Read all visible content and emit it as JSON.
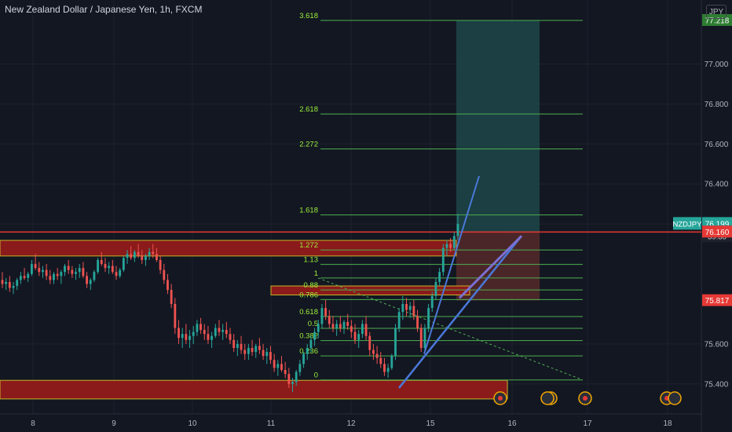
{
  "header": {
    "title": "New Zealand Dollar / Japanese Yen, 1h, FXCM",
    "currency_button": "JPY"
  },
  "colors": {
    "background": "#131722",
    "grid": "#1e222d",
    "up": "#26a69a",
    "down": "#ef5350",
    "fib": "#4caf50",
    "fib_text": "#9bf03a",
    "zone": "#8b1a1a",
    "target_zone": "#1f4d4d",
    "stop_zone": "#5a2a2a",
    "trend_blue": "#4a78d8",
    "trend_purple": "#7b6fd0"
  },
  "icons": {
    "event_flag": "event-flag-icon"
  },
  "chart_data": {
    "type": "candlestick",
    "title": "New Zealand Dollar / Japanese Yen, 1h, FXCM",
    "x_ticks": [
      "8",
      "9",
      "10",
      "11",
      "12",
      "15",
      "16",
      "17",
      "18"
    ],
    "y_ticks": [
      77.0,
      76.8,
      76.6,
      76.4,
      76.2,
      75.6,
      75.4
    ],
    "ylim": [
      75.25,
      77.32
    ],
    "grid": true,
    "price_labels": [
      {
        "value": 77.218,
        "text": "77.218",
        "style": "fib"
      },
      {
        "value": 76.199,
        "text": "76.199",
        "symbol": "NZDJPY",
        "countdown": "39:38",
        "style": "last"
      },
      {
        "value": 76.161,
        "text": "76.161",
        "style": "gray"
      },
      {
        "value": 76.16,
        "text": "76.160",
        "style": "red"
      },
      {
        "value": 75.817,
        "text": "75.817",
        "style": "red"
      }
    ],
    "fib_levels": [
      {
        "label": "0",
        "value": 75.42
      },
      {
        "label": "0.236",
        "value": 75.54
      },
      {
        "label": "0.382",
        "value": 75.617
      },
      {
        "label": "0.5",
        "value": 75.678
      },
      {
        "label": "0.618",
        "value": 75.737
      },
      {
        "label": "0.786",
        "value": 75.822
      },
      {
        "label": "0.88",
        "value": 75.87
      },
      {
        "label": "1",
        "value": 75.93
      },
      {
        "label": "1.13",
        "value": 75.998
      },
      {
        "label": "1.272",
        "value": 76.07
      },
      {
        "label": "1.618",
        "value": 76.245
      },
      {
        "label": "2.272",
        "value": 76.575
      },
      {
        "label": "2.618",
        "value": 76.75
      },
      {
        "label": "3.618",
        "value": 77.218
      }
    ],
    "resistance_line": 76.16,
    "zones": [
      {
        "name": "upper-zone",
        "top": 76.118,
        "bottom": 76.04
      },
      {
        "name": "middle-zone",
        "top": 75.89,
        "bottom": 75.845
      },
      {
        "name": "lower-zone",
        "top": 75.418,
        "bottom": 75.325
      }
    ],
    "position": {
      "entry": 76.16,
      "target": 77.218,
      "stop": 75.817
    },
    "candles": [
      {
        "o": 75.92,
        "h": 75.96,
        "l": 75.88,
        "c": 75.9
      },
      {
        "o": 75.9,
        "h": 75.93,
        "l": 75.87,
        "c": 75.91
      },
      {
        "o": 75.91,
        "h": 75.94,
        "l": 75.86,
        "c": 75.88
      },
      {
        "o": 75.88,
        "h": 75.91,
        "l": 75.85,
        "c": 75.89
      },
      {
        "o": 75.89,
        "h": 75.93,
        "l": 75.87,
        "c": 75.92
      },
      {
        "o": 75.92,
        "h": 75.96,
        "l": 75.9,
        "c": 75.94
      },
      {
        "o": 75.94,
        "h": 75.98,
        "l": 75.92,
        "c": 75.93
      },
      {
        "o": 75.93,
        "h": 75.96,
        "l": 75.91,
        "c": 75.95
      },
      {
        "o": 75.95,
        "h": 76.02,
        "l": 75.94,
        "c": 76.0
      },
      {
        "o": 76.0,
        "h": 76.05,
        "l": 75.97,
        "c": 75.98
      },
      {
        "o": 75.98,
        "h": 76.01,
        "l": 75.94,
        "c": 75.96
      },
      {
        "o": 75.96,
        "h": 75.99,
        "l": 75.93,
        "c": 75.97
      },
      {
        "o": 75.97,
        "h": 76.0,
        "l": 75.92,
        "c": 75.94
      },
      {
        "o": 75.94,
        "h": 75.97,
        "l": 75.9,
        "c": 75.92
      },
      {
        "o": 75.92,
        "h": 75.96,
        "l": 75.9,
        "c": 75.95
      },
      {
        "o": 75.95,
        "h": 75.98,
        "l": 75.92,
        "c": 75.94
      },
      {
        "o": 75.94,
        "h": 75.97,
        "l": 75.9,
        "c": 75.96
      },
      {
        "o": 75.96,
        "h": 76.0,
        "l": 75.94,
        "c": 75.99
      },
      {
        "o": 75.99,
        "h": 76.02,
        "l": 75.95,
        "c": 75.97
      },
      {
        "o": 75.97,
        "h": 75.99,
        "l": 75.93,
        "c": 75.95
      },
      {
        "o": 75.95,
        "h": 75.98,
        "l": 75.92,
        "c": 75.96
      },
      {
        "o": 75.96,
        "h": 76.0,
        "l": 75.93,
        "c": 75.98
      },
      {
        "o": 75.98,
        "h": 76.01,
        "l": 75.93,
        "c": 75.94
      },
      {
        "o": 75.94,
        "h": 75.96,
        "l": 75.88,
        "c": 75.9
      },
      {
        "o": 75.9,
        "h": 75.93,
        "l": 75.87,
        "c": 75.92
      },
      {
        "o": 75.92,
        "h": 75.97,
        "l": 75.91,
        "c": 75.96
      },
      {
        "o": 75.96,
        "h": 76.03,
        "l": 75.95,
        "c": 76.02
      },
      {
        "o": 76.02,
        "h": 76.06,
        "l": 75.99,
        "c": 76.0
      },
      {
        "o": 76.0,
        "h": 76.03,
        "l": 75.96,
        "c": 75.98
      },
      {
        "o": 75.98,
        "h": 76.01,
        "l": 75.95,
        "c": 75.99
      },
      {
        "o": 75.99,
        "h": 76.02,
        "l": 75.95,
        "c": 75.96
      },
      {
        "o": 75.96,
        "h": 75.99,
        "l": 75.92,
        "c": 75.94
      },
      {
        "o": 75.94,
        "h": 75.98,
        "l": 75.93,
        "c": 75.97
      },
      {
        "o": 75.97,
        "h": 76.04,
        "l": 75.96,
        "c": 76.03
      },
      {
        "o": 76.03,
        "h": 76.07,
        "l": 76.0,
        "c": 76.05
      },
      {
        "o": 76.05,
        "h": 76.09,
        "l": 76.02,
        "c": 76.03
      },
      {
        "o": 76.03,
        "h": 76.07,
        "l": 76.01,
        "c": 76.06
      },
      {
        "o": 76.06,
        "h": 76.1,
        "l": 76.03,
        "c": 76.04
      },
      {
        "o": 76.04,
        "h": 76.07,
        "l": 76.0,
        "c": 76.02
      },
      {
        "o": 76.02,
        "h": 76.05,
        "l": 75.99,
        "c": 76.04
      },
      {
        "o": 76.04,
        "h": 76.08,
        "l": 76.02,
        "c": 76.06
      },
      {
        "o": 76.06,
        "h": 76.1,
        "l": 76.03,
        "c": 76.05
      },
      {
        "o": 76.05,
        "h": 76.08,
        "l": 76.01,
        "c": 76.02
      },
      {
        "o": 76.02,
        "h": 76.04,
        "l": 75.95,
        "c": 75.97
      },
      {
        "o": 75.97,
        "h": 76.0,
        "l": 75.9,
        "c": 75.92
      },
      {
        "o": 75.92,
        "h": 75.95,
        "l": 75.85,
        "c": 75.87
      },
      {
        "o": 75.87,
        "h": 75.9,
        "l": 75.78,
        "c": 75.8
      },
      {
        "o": 75.8,
        "h": 75.83,
        "l": 75.65,
        "c": 75.68
      },
      {
        "o": 75.68,
        "h": 75.72,
        "l": 75.6,
        "c": 75.63
      },
      {
        "o": 75.63,
        "h": 75.68,
        "l": 75.58,
        "c": 75.65
      },
      {
        "o": 75.65,
        "h": 75.7,
        "l": 75.6,
        "c": 75.62
      },
      {
        "o": 75.62,
        "h": 75.67,
        "l": 75.58,
        "c": 75.64
      },
      {
        "o": 75.64,
        "h": 75.69,
        "l": 75.6,
        "c": 75.66
      },
      {
        "o": 75.66,
        "h": 75.72,
        "l": 75.64,
        "c": 75.7
      },
      {
        "o": 75.7,
        "h": 75.73,
        "l": 75.65,
        "c": 75.67
      },
      {
        "o": 75.67,
        "h": 75.7,
        "l": 75.62,
        "c": 75.65
      },
      {
        "o": 75.65,
        "h": 75.69,
        "l": 75.6,
        "c": 75.62
      },
      {
        "o": 75.62,
        "h": 75.66,
        "l": 75.58,
        "c": 75.64
      },
      {
        "o": 75.64,
        "h": 75.7,
        "l": 75.63,
        "c": 75.68
      },
      {
        "o": 75.68,
        "h": 75.72,
        "l": 75.64,
        "c": 75.66
      },
      {
        "o": 75.66,
        "h": 75.7,
        "l": 75.62,
        "c": 75.67
      },
      {
        "o": 75.67,
        "h": 75.71,
        "l": 75.63,
        "c": 75.65
      },
      {
        "o": 75.65,
        "h": 75.68,
        "l": 75.6,
        "c": 75.62
      },
      {
        "o": 75.62,
        "h": 75.65,
        "l": 75.56,
        "c": 75.58
      },
      {
        "o": 75.58,
        "h": 75.62,
        "l": 75.54,
        "c": 75.6
      },
      {
        "o": 75.6,
        "h": 75.64,
        "l": 75.55,
        "c": 75.57
      },
      {
        "o": 75.57,
        "h": 75.6,
        "l": 75.52,
        "c": 75.55
      },
      {
        "o": 75.55,
        "h": 75.6,
        "l": 75.52,
        "c": 75.58
      },
      {
        "o": 75.58,
        "h": 75.62,
        "l": 75.54,
        "c": 75.56
      },
      {
        "o": 75.56,
        "h": 75.6,
        "l": 75.53,
        "c": 75.59
      },
      {
        "o": 75.59,
        "h": 75.63,
        "l": 75.55,
        "c": 75.57
      },
      {
        "o": 75.57,
        "h": 75.6,
        "l": 75.52,
        "c": 75.54
      },
      {
        "o": 75.54,
        "h": 75.58,
        "l": 75.5,
        "c": 75.56
      },
      {
        "o": 75.56,
        "h": 75.59,
        "l": 75.5,
        "c": 75.52
      },
      {
        "o": 75.52,
        "h": 75.55,
        "l": 75.46,
        "c": 75.48
      },
      {
        "o": 75.48,
        "h": 75.52,
        "l": 75.44,
        "c": 75.5
      },
      {
        "o": 75.5,
        "h": 75.54,
        "l": 75.46,
        "c": 75.47
      },
      {
        "o": 75.47,
        "h": 75.51,
        "l": 75.43,
        "c": 75.45
      },
      {
        "o": 75.45,
        "h": 75.48,
        "l": 75.38,
        "c": 75.4
      },
      {
        "o": 75.4,
        "h": 75.43,
        "l": 75.36,
        "c": 75.41
      },
      {
        "o": 75.41,
        "h": 75.47,
        "l": 75.39,
        "c": 75.46
      },
      {
        "o": 75.46,
        "h": 75.52,
        "l": 75.44,
        "c": 75.5
      },
      {
        "o": 75.5,
        "h": 75.56,
        "l": 75.48,
        "c": 75.55
      },
      {
        "o": 75.55,
        "h": 75.6,
        "l": 75.52,
        "c": 75.58
      },
      {
        "o": 75.58,
        "h": 75.64,
        "l": 75.56,
        "c": 75.62
      },
      {
        "o": 75.62,
        "h": 75.68,
        "l": 75.59,
        "c": 75.66
      },
      {
        "o": 75.66,
        "h": 75.72,
        "l": 75.63,
        "c": 75.7
      },
      {
        "o": 75.7,
        "h": 75.8,
        "l": 75.68,
        "c": 75.78
      },
      {
        "o": 75.78,
        "h": 75.82,
        "l": 75.72,
        "c": 75.74
      },
      {
        "o": 75.74,
        "h": 75.77,
        "l": 75.68,
        "c": 75.7
      },
      {
        "o": 75.7,
        "h": 75.74,
        "l": 75.66,
        "c": 75.68
      },
      {
        "o": 75.68,
        "h": 75.72,
        "l": 75.64,
        "c": 75.7
      },
      {
        "o": 75.7,
        "h": 75.74,
        "l": 75.66,
        "c": 75.68
      },
      {
        "o": 75.68,
        "h": 75.72,
        "l": 75.65,
        "c": 75.71
      },
      {
        "o": 75.71,
        "h": 75.75,
        "l": 75.67,
        "c": 75.69
      },
      {
        "o": 75.69,
        "h": 75.72,
        "l": 75.63,
        "c": 75.66
      },
      {
        "o": 75.66,
        "h": 75.7,
        "l": 75.6,
        "c": 75.62
      },
      {
        "o": 75.62,
        "h": 75.67,
        "l": 75.58,
        "c": 75.65
      },
      {
        "o": 75.65,
        "h": 75.72,
        "l": 75.63,
        "c": 75.7
      },
      {
        "o": 75.7,
        "h": 75.74,
        "l": 75.62,
        "c": 75.64
      },
      {
        "o": 75.64,
        "h": 75.66,
        "l": 75.54,
        "c": 75.57
      },
      {
        "o": 75.57,
        "h": 75.6,
        "l": 75.52,
        "c": 75.55
      },
      {
        "o": 75.55,
        "h": 75.59,
        "l": 75.5,
        "c": 75.53
      },
      {
        "o": 75.53,
        "h": 75.56,
        "l": 75.48,
        "c": 75.5
      },
      {
        "o": 75.5,
        "h": 75.53,
        "l": 75.44,
        "c": 75.46
      },
      {
        "o": 75.46,
        "h": 75.5,
        "l": 75.43,
        "c": 75.48
      },
      {
        "o": 75.48,
        "h": 75.55,
        "l": 75.47,
        "c": 75.54
      },
      {
        "o": 75.54,
        "h": 75.7,
        "l": 75.52,
        "c": 75.68
      },
      {
        "o": 75.68,
        "h": 75.78,
        "l": 75.66,
        "c": 75.76
      },
      {
        "o": 75.76,
        "h": 75.84,
        "l": 75.72,
        "c": 75.8
      },
      {
        "o": 75.8,
        "h": 75.83,
        "l": 75.74,
        "c": 75.77
      },
      {
        "o": 75.77,
        "h": 75.81,
        "l": 75.73,
        "c": 75.79
      },
      {
        "o": 75.79,
        "h": 75.82,
        "l": 75.72,
        "c": 75.74
      },
      {
        "o": 75.74,
        "h": 75.77,
        "l": 75.66,
        "c": 75.68
      },
      {
        "o": 75.68,
        "h": 75.7,
        "l": 75.56,
        "c": 75.58
      },
      {
        "o": 75.58,
        "h": 75.7,
        "l": 75.56,
        "c": 75.68
      },
      {
        "o": 75.68,
        "h": 75.8,
        "l": 75.66,
        "c": 75.78
      },
      {
        "o": 75.78,
        "h": 75.86,
        "l": 75.76,
        "c": 75.84
      },
      {
        "o": 75.84,
        "h": 75.93,
        "l": 75.82,
        "c": 75.91
      },
      {
        "o": 75.91,
        "h": 75.98,
        "l": 75.89,
        "c": 75.96
      },
      {
        "o": 75.96,
        "h": 76.1,
        "l": 75.94,
        "c": 76.08
      },
      {
        "o": 76.08,
        "h": 76.12,
        "l": 76.04,
        "c": 76.1
      },
      {
        "o": 76.1,
        "h": 76.13,
        "l": 76.06,
        "c": 76.08
      },
      {
        "o": 76.08,
        "h": 76.16,
        "l": 76.07,
        "c": 76.14
      },
      {
        "o": 76.14,
        "h": 76.25,
        "l": 76.12,
        "c": 76.2
      }
    ]
  }
}
